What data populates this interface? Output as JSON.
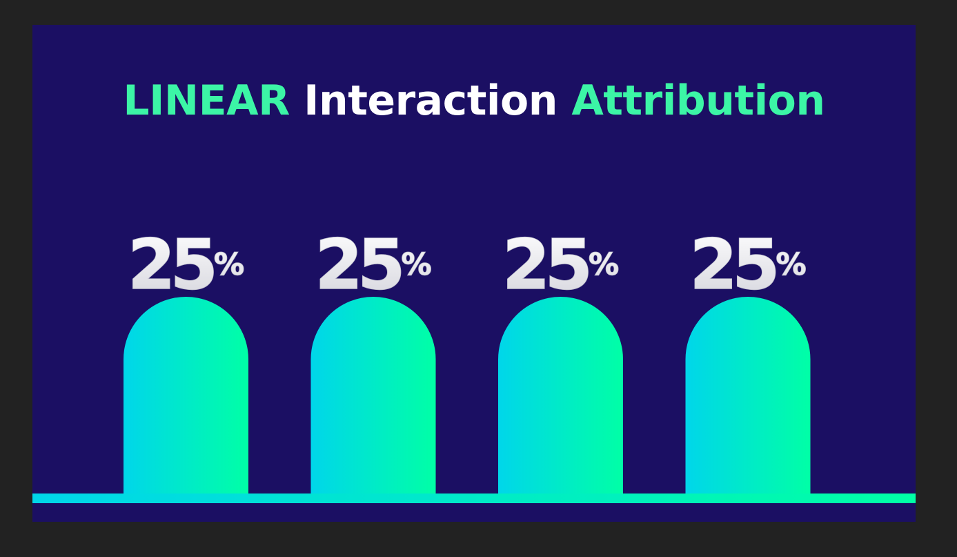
{
  "title": {
    "word1": "LINEAR",
    "word2": "Interaction",
    "word3": "Attribution"
  },
  "colors": {
    "background": "#1b0f63",
    "accent": "#3cf5a6",
    "bar_gradient_start": "#00d6ea",
    "bar_gradient_end": "#00ffa6",
    "label": "#f2f2f2"
  },
  "chart_data": {
    "type": "bar",
    "title": "LINEAR Interaction Attribution",
    "categories": [
      "",
      "",
      "",
      ""
    ],
    "values": [
      25,
      25,
      25,
      25
    ],
    "labels": [
      "25%",
      "25%",
      "25%",
      "25%"
    ],
    "ylim": [
      0,
      25
    ],
    "grid": false,
    "legend": "none"
  }
}
